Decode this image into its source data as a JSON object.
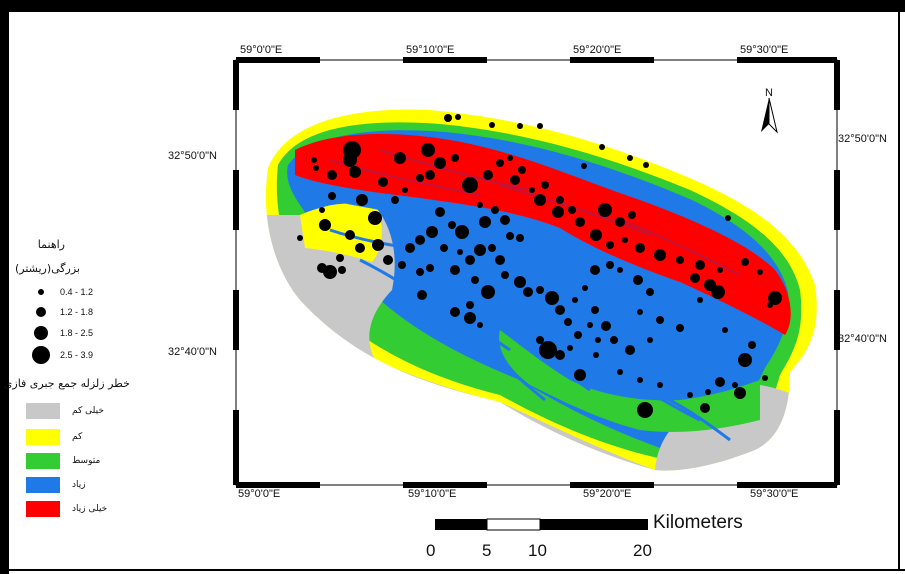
{
  "map": {
    "top_lon_labels": [
      "59°0'0\"E",
      "59°10'0\"E",
      "59°20'0\"E",
      "59°30'0\"E"
    ],
    "bottom_lon_labels": [
      "59°0'0\"E",
      "59°10'0\"E",
      "59°20'0\"E",
      "59°30'0\"E"
    ],
    "left_lat_labels": [
      "32°50'0\"N",
      "32°40'0\"N"
    ],
    "right_lat_labels": [
      "32°50'0\"N",
      "32°40'0\"N"
    ],
    "north_arrow_label": "N",
    "class_colors": {
      "very_low": "#c8c8c8",
      "low": "#ffff00",
      "medium": "#33cc33",
      "high": "#1f7ae8",
      "very_high": "#ff0000",
      "epicenter": "#000000"
    }
  },
  "legend": {
    "title": "راهنما",
    "size_title": "بزرگی(ریشتر)",
    "size_classes": [
      {
        "label": "0.4 - 1.2",
        "dot": 6
      },
      {
        "label": "1.2 - 1.8",
        "dot": 10
      },
      {
        "label": "1.8 - 2.5",
        "dot": 14
      },
      {
        "label": "2.5 - 3.9",
        "dot": 18
      }
    ],
    "hazard_title": "خطر زلزله جمع جبری فازی",
    "hazard_classes": [
      {
        "label": "خیلی کم",
        "color": "#c8c8c8"
      },
      {
        "label": "کم",
        "color": "#ffff00"
      },
      {
        "label": "متوسط",
        "color": "#33cc33"
      },
      {
        "label": "زیاد",
        "color": "#1f7ae8"
      },
      {
        "label": "خیلی زیاد",
        "color": "#ff0000"
      }
    ]
  },
  "scale_bar": {
    "unit": "Kilometers",
    "ticks": [
      "0",
      "5",
      "10",
      "20"
    ]
  }
}
